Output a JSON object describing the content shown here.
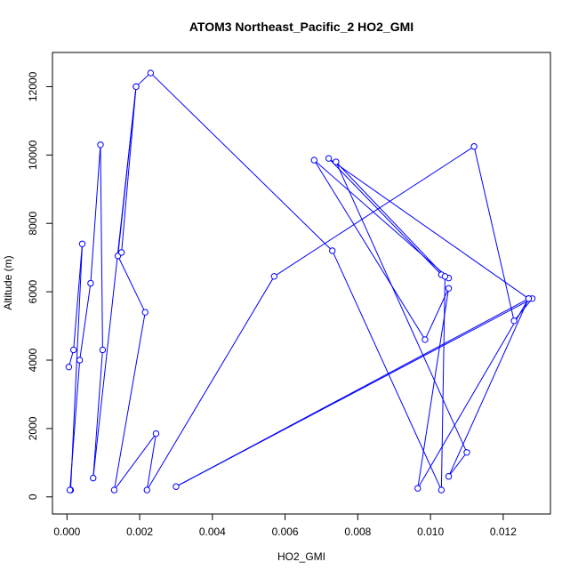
{
  "chart_data": {
    "type": "line",
    "title": "ATOM3 Northeast_Pacific_2 HO2_GMI",
    "xlabel": "HO2_GMI",
    "ylabel": "Altitude (m)",
    "xlim": [
      -0.0004,
      0.0133
    ],
    "ylim": [
      -500,
      13000
    ],
    "x_ticks": [
      0.0,
      0.002,
      0.004,
      0.006,
      0.008,
      0.01,
      0.012
    ],
    "x_tick_labels": [
      "0.000",
      "0.002",
      "0.004",
      "0.006",
      "0.008",
      "0.010",
      "0.012"
    ],
    "y_ticks": [
      0,
      2000,
      4000,
      6000,
      8000,
      10000,
      12000
    ],
    "y_tick_labels": [
      "0",
      "2000",
      "4000",
      "6000",
      "8000",
      "10000",
      "12000"
    ],
    "grid": false,
    "legend": "none",
    "series": [
      {
        "color": "#0000ff",
        "marker": "open-circle",
        "x": [
          5e-05,
          0.00018,
          0.00042,
          0.0001,
          8e-05,
          0.00035,
          0.00065,
          0.00092,
          0.00098,
          0.00072,
          0.0019,
          0.0014,
          0.00215,
          0.0013,
          0.00245,
          0.0022,
          0.0057,
          0.0112,
          0.0123,
          0.0128,
          0.003,
          0.0127,
          0.00965,
          0.0105,
          0.00985,
          0.0068,
          0.0105,
          0.0103,
          0.0072,
          0.0127,
          0.0105,
          0.011,
          0.0074,
          0.0104,
          0.0103,
          0.0073,
          0.0023,
          0.0019,
          0.0015
        ],
        "y": [
          3800,
          4300,
          7400,
          200,
          200,
          4000,
          6250,
          10300,
          4300,
          550,
          12000,
          7050,
          5400,
          200,
          1850,
          200,
          6450,
          10250,
          5150,
          5800,
          300,
          5800,
          250,
          6100,
          4600,
          9850,
          6400,
          6500,
          9900,
          5800,
          600,
          1300,
          9800,
          6450,
          200,
          7200,
          12400,
          12000,
          7150
        ]
      }
    ]
  }
}
